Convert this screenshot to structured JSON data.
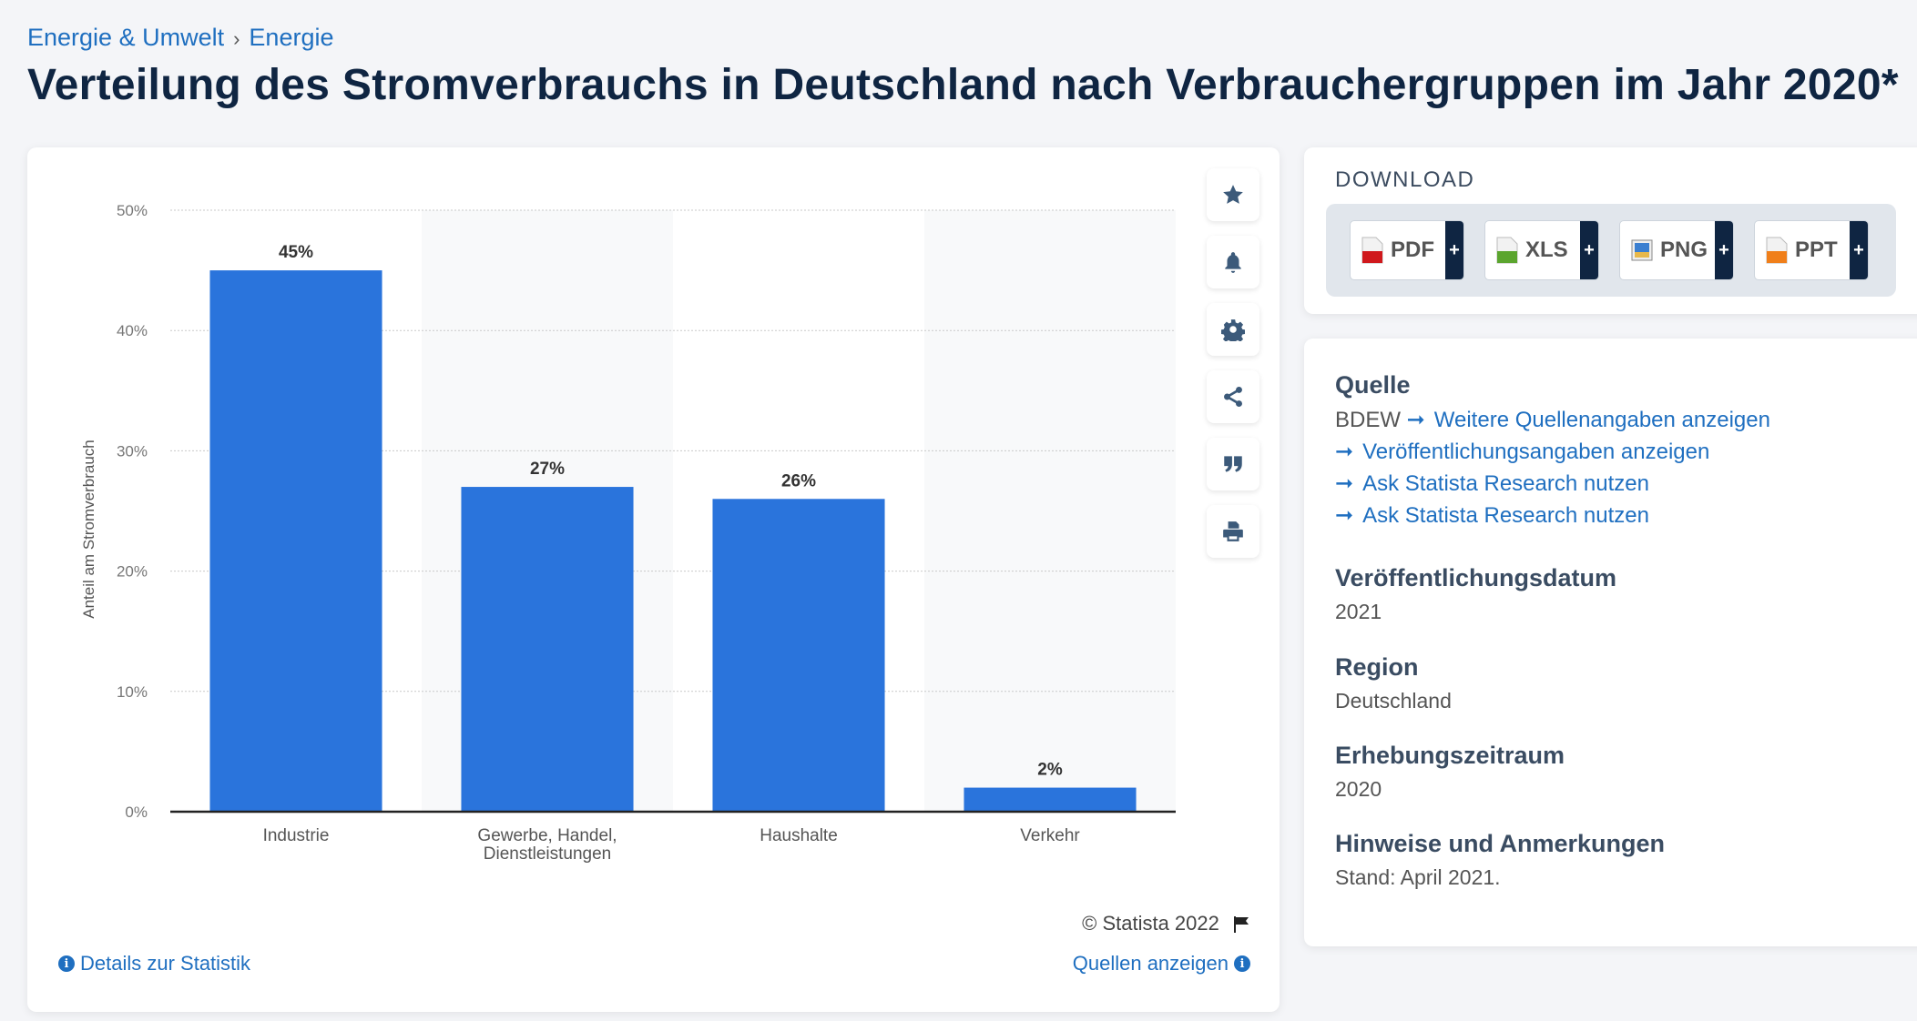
{
  "breadcrumb": {
    "items": [
      "Energie & Umwelt",
      "Energie"
    ],
    "separator": "›"
  },
  "page_title": "Verteilung des Stromverbrauchs in Deutschland nach Verbrauchergruppen im Jahr 2020*",
  "chart_data": {
    "type": "bar",
    "title": "",
    "categories": [
      "Industrie",
      "Gewerbe, Handel, Dienstleistungen",
      "Haushalte",
      "Verkehr"
    ],
    "category_lines": [
      [
        "Industrie"
      ],
      [
        "Gewerbe, Handel,",
        "Dienstleistungen"
      ],
      [
        "Haushalte"
      ],
      [
        "Verkehr"
      ]
    ],
    "values": [
      45,
      27,
      26,
      2
    ],
    "data_labels": [
      "45%",
      "27%",
      "26%",
      "2%"
    ],
    "xlabel": "",
    "ylabel": "Anteil am Stromverbrauch",
    "ylim": [
      0,
      50
    ],
    "yticks": [
      0,
      10,
      20,
      30,
      40,
      50
    ],
    "ytick_labels": [
      "0%",
      "10%",
      "20%",
      "30%",
      "40%",
      "50%"
    ],
    "grid": true,
    "bar_color": "#2a74dc",
    "alternating_bands": true
  },
  "chart_tools": [
    {
      "name": "favorite",
      "icon": "star-icon"
    },
    {
      "name": "notification",
      "icon": "bell-icon"
    },
    {
      "name": "settings",
      "icon": "gear-icon"
    },
    {
      "name": "share",
      "icon": "share-icon"
    },
    {
      "name": "cite",
      "icon": "quote-icon"
    },
    {
      "name": "print",
      "icon": "printer-icon"
    }
  ],
  "chart_footer": {
    "copyright": "© Statista 2022",
    "details_link": "Details zur Statistik",
    "sources_link": "Quellen anzeigen"
  },
  "download": {
    "title": "DOWNLOAD",
    "buttons": [
      {
        "label": "PDF",
        "color": "#d0181c"
      },
      {
        "label": "XLS",
        "color": "#5ba52e"
      },
      {
        "label": "PNG",
        "color": "#3b7fd0"
      },
      {
        "label": "PPT",
        "color": "#f07f1a"
      }
    ],
    "plus": "+"
  },
  "info": {
    "source_heading": "Quelle",
    "source_name": "BDEW",
    "source_links": [
      "Weitere Quellenangaben anzeigen",
      "Veröffentlichungsangaben anzeigen",
      "Ask Statista Research nutzen",
      "Ask Statista Research nutzen"
    ],
    "pub_date_heading": "Veröffentlichungsdatum",
    "pub_date": "2021",
    "region_heading": "Region",
    "region": "Deutschland",
    "period_heading": "Erhebungszeitraum",
    "period": "2020",
    "notes_heading": "Hinweise und Anmerkungen",
    "notes": "Stand: April 2021."
  }
}
